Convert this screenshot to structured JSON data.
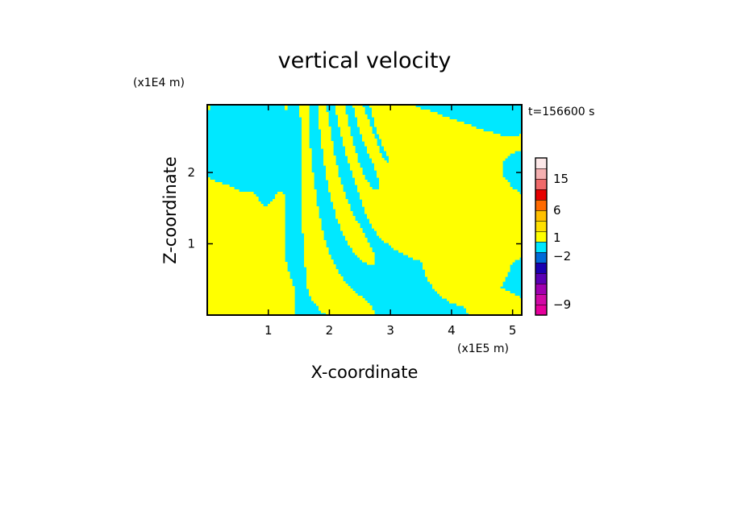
{
  "chart_data": {
    "type": "heatmap",
    "title": "vertical velocity",
    "xlabel": "X-coordinate",
    "ylabel": "Z-coordinate",
    "x_unit": "(x1E5 m)",
    "y_unit": "(x1E4 m)",
    "time_label": "t=156600 s",
    "xlim": [
      0,
      5.15
    ],
    "ylim": [
      0,
      2.95
    ],
    "xticks": [
      1,
      2,
      3,
      4,
      5
    ],
    "yticks": [
      1,
      2
    ],
    "fill_colors": {
      "positive": "#ffff00",
      "negative": "#00e8ff"
    },
    "colorbar": {
      "levels": [
        {
          "color": "#e6009c"
        },
        {
          "color": "#d10aa6"
        },
        {
          "color": "#a000b0"
        },
        {
          "color": "#5a00b4"
        },
        {
          "color": "#1a00b0"
        },
        {
          "color": "#006ad8"
        },
        {
          "color": "#00e8ff"
        },
        {
          "color": "#ffff00"
        },
        {
          "color": "#ffe000"
        },
        {
          "color": "#ffc000"
        },
        {
          "color": "#ff6a00"
        },
        {
          "color": "#e60000"
        },
        {
          "color": "#f06a6a"
        },
        {
          "color": "#f5b0b0"
        },
        {
          "color": "#fde8e8"
        }
      ],
      "labels": [
        {
          "text": "15",
          "level": 13
        },
        {
          "text": "6",
          "level": 10
        },
        {
          "text": "1",
          "level": 7.4
        },
        {
          "text": "−2",
          "level": 5.6
        },
        {
          "text": "−9",
          "level": 1
        }
      ]
    }
  }
}
